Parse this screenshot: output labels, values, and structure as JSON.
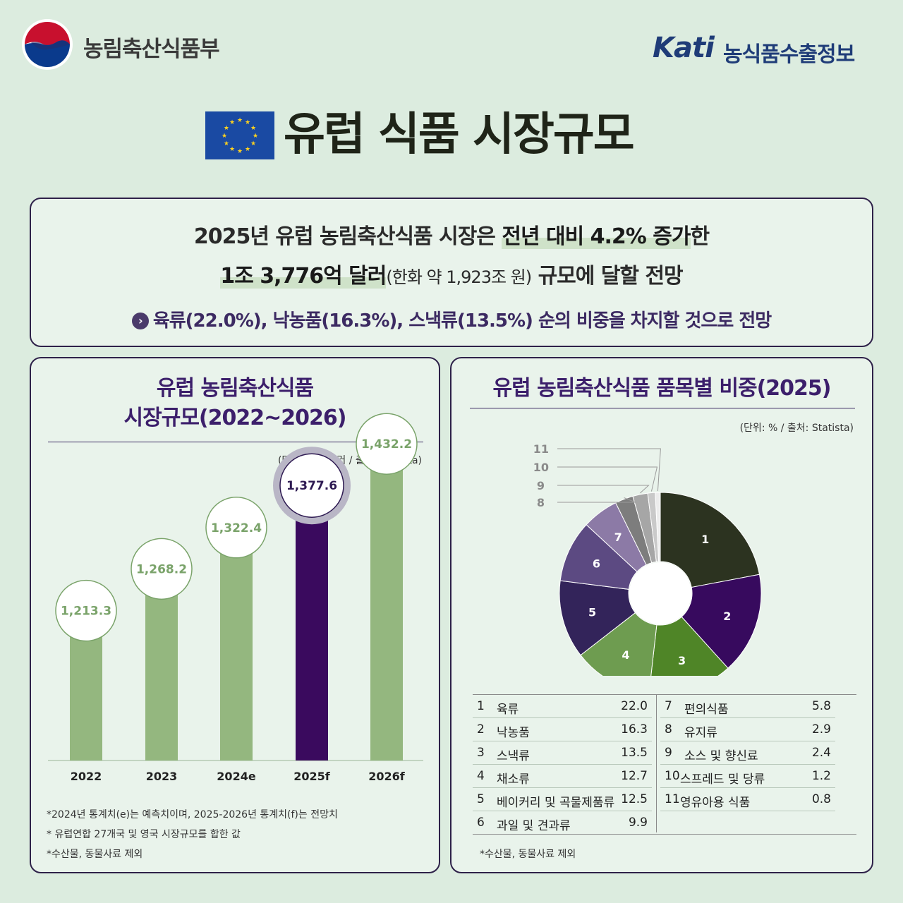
{
  "header": {
    "ministry_name": "농림축산식품부",
    "kati_logo": "Kati",
    "kati_name": "농식품수출정보",
    "main_title": "유럽 식품 시장규모"
  },
  "summary": {
    "line1_a": "2025년 유럽 농림축산식품 시장은 ",
    "line1_b": "전년 대비  4.2% 증가",
    "line1_c": "한",
    "line2_a": "1조 3,776억 달러",
    "line2_b": "(한화 약 1,923조 원)",
    "line2_c": " 규모에 달할 전망",
    "line3": "육류(22.0%),  낙농품(16.3%), 스낵류(13.5%) 순의 비중을 차지할 것으로 전망"
  },
  "left_panel": {
    "title_line1": "유럽 농림축산식품",
    "title_line2": "시장규모(2022~2026)",
    "unit": "(단위: 십억 달러 / 출처: Statista)",
    "notes": [
      "*2024년 통계치(e)는 예측치이며, 2025-2026년 통계치(f)는 전망치",
      "* 유럽연합 27개국 및 영국 시장규모를 합한 값",
      "*수산물, 동물사료 제외"
    ]
  },
  "right_panel": {
    "title": "유럽 농림축산식품 품목별 비중(2025)",
    "unit": "(단위: % / 출처: Statista)",
    "note": "*수산물, 동물사료 제외"
  },
  "colors": {
    "bar_green": "#94b77f",
    "bar_highlight": "#3a0a5e",
    "label_green": "#7aa36a",
    "label_purple": "#2e1a52",
    "pie": [
      "#2c3320",
      "#370a5e",
      "#4f8527",
      "#6e9c50",
      "#33245a",
      "#5c4a82",
      "#8c7aa6",
      "#7d7d7d",
      "#a6a6a6",
      "#c9c9c9",
      "#ececec"
    ]
  },
  "chart_data": [
    {
      "type": "bar",
      "title": "유럽 농림축산식품 시장규모(2022~2026)",
      "categories": [
        "2022",
        "2023",
        "2024e",
        "2025f",
        "2026f"
      ],
      "values": [
        1213.3,
        1268.2,
        1322.4,
        1377.6,
        1432.2
      ],
      "value_labels": [
        "1,213.3",
        "1,268.2",
        "1,322.4",
        "1,377.6",
        "1,432.2"
      ],
      "highlight_index": 3,
      "ylabel": "십억 달러",
      "ylim": [
        0,
        1500
      ]
    },
    {
      "type": "pie",
      "title": "유럽 농림축산식품 품목별 비중(2025)",
      "labels": [
        "육류",
        "낙농품",
        "스낵류",
        "채소류",
        "베이커리 및 곡물제품류",
        "과일 및 견과류",
        "편의식품",
        "유지류",
        "소스 및 향신료",
        "스프레드 및 당류",
        "영유아용 식품"
      ],
      "numbers": [
        "1",
        "2",
        "3",
        "4",
        "5",
        "6",
        "7",
        "8",
        "9",
        "10",
        "11"
      ],
      "values": [
        22.0,
        16.3,
        13.5,
        12.7,
        12.5,
        9.9,
        5.8,
        2.9,
        2.4,
        1.2,
        0.8
      ],
      "value_labels": [
        "22.0",
        "16.3",
        "13.5",
        "12.7",
        "12.5",
        "9.9",
        "5.8",
        "2.9",
        "2.4",
        "1.2",
        "0.8"
      ]
    }
  ]
}
